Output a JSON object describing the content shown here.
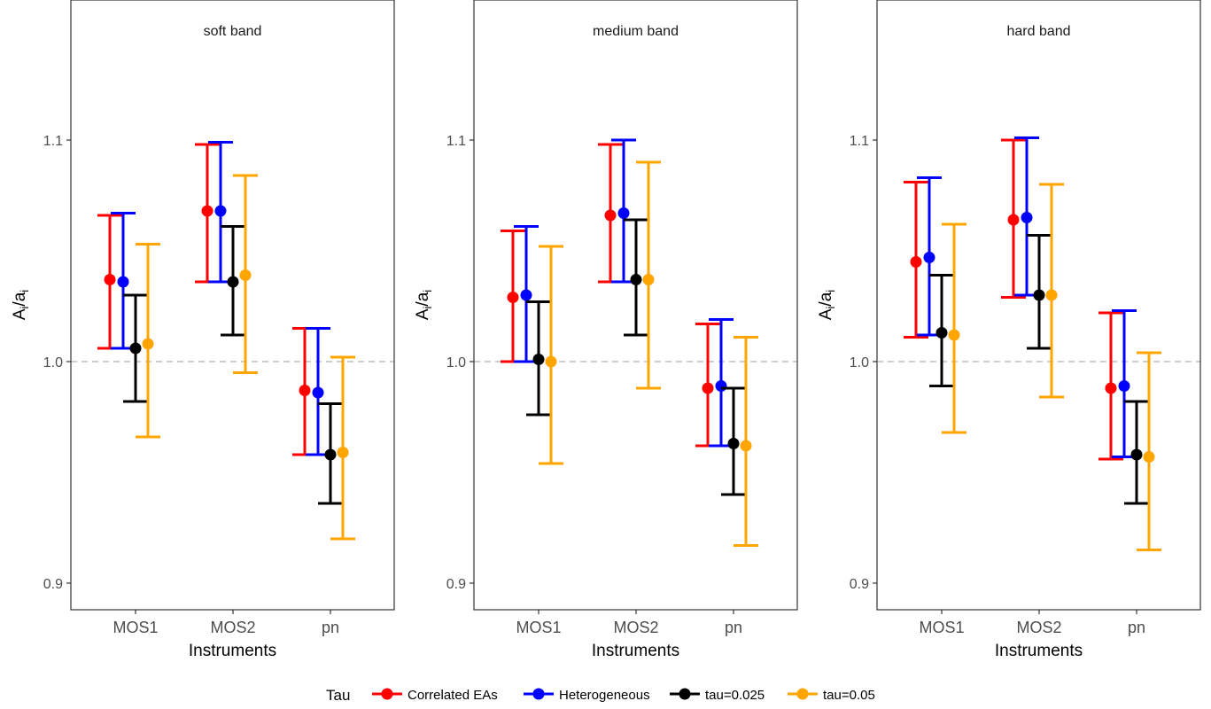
{
  "chart_data": {
    "type": "errorbar",
    "ylabel_base": "A",
    "ylabel_sub1": "i",
    "ylabel_mid": "/a",
    "ylabel_sub2": "i",
    "xlabel": "Instruments",
    "categories": [
      "MOS1",
      "MOS2",
      "pn"
    ],
    "y_ticks": [
      "0.9",
      "1.0",
      "1.1"
    ],
    "ylim": [
      0.8875,
      1.1625
    ],
    "reference_line": 1.0,
    "legend_title": "Tau",
    "legend_placement": "bottom",
    "series": [
      {
        "name": "Correlated EAs",
        "color": "#ff0000"
      },
      {
        "name": "Heterogeneous",
        "color": "#0000ff"
      },
      {
        "name": "tau=0.025",
        "color": "#000000"
      },
      {
        "name": "tau=0.05",
        "color": "#ffa500"
      }
    ],
    "panels": [
      {
        "title": "soft band",
        "data": [
          {
            "series": "Correlated EAs",
            "points": [
              {
                "category": "MOS1",
                "y": 1.037,
                "lo": 1.006,
                "hi": 1.066
              },
              {
                "category": "MOS2",
                "y": 1.068,
                "lo": 1.036,
                "hi": 1.098
              },
              {
                "category": "pn",
                "y": 0.987,
                "lo": 0.958,
                "hi": 1.015
              }
            ]
          },
          {
            "series": "Heterogeneous",
            "points": [
              {
                "category": "MOS1",
                "y": 1.036,
                "lo": 1.006,
                "hi": 1.067
              },
              {
                "category": "MOS2",
                "y": 1.068,
                "lo": 1.036,
                "hi": 1.099
              },
              {
                "category": "pn",
                "y": 0.986,
                "lo": 0.958,
                "hi": 1.015
              }
            ]
          },
          {
            "series": "tau=0.025",
            "points": [
              {
                "category": "MOS1",
                "y": 1.006,
                "lo": 0.982,
                "hi": 1.03
              },
              {
                "category": "MOS2",
                "y": 1.036,
                "lo": 1.012,
                "hi": 1.061
              },
              {
                "category": "pn",
                "y": 0.958,
                "lo": 0.936,
                "hi": 0.981
              }
            ]
          },
          {
            "series": "tau=0.05",
            "points": [
              {
                "category": "MOS1",
                "y": 1.008,
                "lo": 0.966,
                "hi": 1.053
              },
              {
                "category": "MOS2",
                "y": 1.039,
                "lo": 0.995,
                "hi": 1.084
              },
              {
                "category": "pn",
                "y": 0.959,
                "lo": 0.92,
                "hi": 1.002
              }
            ]
          }
        ]
      },
      {
        "title": "medium band",
        "data": [
          {
            "series": "Correlated EAs",
            "points": [
              {
                "category": "MOS1",
                "y": 1.029,
                "lo": 1.0,
                "hi": 1.059
              },
              {
                "category": "MOS2",
                "y": 1.066,
                "lo": 1.036,
                "hi": 1.098
              },
              {
                "category": "pn",
                "y": 0.988,
                "lo": 0.962,
                "hi": 1.017
              }
            ]
          },
          {
            "series": "Heterogeneous",
            "points": [
              {
                "category": "MOS1",
                "y": 1.03,
                "lo": 1.0,
                "hi": 1.061
              },
              {
                "category": "MOS2",
                "y": 1.067,
                "lo": 1.036,
                "hi": 1.1
              },
              {
                "category": "pn",
                "y": 0.989,
                "lo": 0.962,
                "hi": 1.019
              }
            ]
          },
          {
            "series": "tau=0.025",
            "points": [
              {
                "category": "MOS1",
                "y": 1.001,
                "lo": 0.976,
                "hi": 1.027
              },
              {
                "category": "MOS2",
                "y": 1.037,
                "lo": 1.012,
                "hi": 1.064
              },
              {
                "category": "pn",
                "y": 0.963,
                "lo": 0.94,
                "hi": 0.988
              }
            ]
          },
          {
            "series": "tau=0.05",
            "points": [
              {
                "category": "MOS1",
                "y": 1.0,
                "lo": 0.954,
                "hi": 1.052
              },
              {
                "category": "MOS2",
                "y": 1.037,
                "lo": 0.988,
                "hi": 1.09
              },
              {
                "category": "pn",
                "y": 0.962,
                "lo": 0.917,
                "hi": 1.011
              }
            ]
          }
        ]
      },
      {
        "title": "hard band",
        "data": [
          {
            "series": "Correlated EAs",
            "points": [
              {
                "category": "MOS1",
                "y": 1.045,
                "lo": 1.011,
                "hi": 1.081
              },
              {
                "category": "MOS2",
                "y": 1.064,
                "lo": 1.029,
                "hi": 1.1
              },
              {
                "category": "pn",
                "y": 0.988,
                "lo": 0.956,
                "hi": 1.022
              }
            ]
          },
          {
            "series": "Heterogeneous",
            "points": [
              {
                "category": "MOS1",
                "y": 1.047,
                "lo": 1.012,
                "hi": 1.083
              },
              {
                "category": "MOS2",
                "y": 1.065,
                "lo": 1.03,
                "hi": 1.101
              },
              {
                "category": "pn",
                "y": 0.989,
                "lo": 0.957,
                "hi": 1.023
              }
            ]
          },
          {
            "series": "tau=0.025",
            "points": [
              {
                "category": "MOS1",
                "y": 1.013,
                "lo": 0.989,
                "hi": 1.039
              },
              {
                "category": "MOS2",
                "y": 1.03,
                "lo": 1.006,
                "hi": 1.057
              },
              {
                "category": "pn",
                "y": 0.958,
                "lo": 0.936,
                "hi": 0.982
              }
            ]
          },
          {
            "series": "tau=0.05",
            "points": [
              {
                "category": "MOS1",
                "y": 1.012,
                "lo": 0.968,
                "hi": 1.062
              },
              {
                "category": "MOS2",
                "y": 1.03,
                "lo": 0.984,
                "hi": 1.08
              },
              {
                "category": "pn",
                "y": 0.957,
                "lo": 0.915,
                "hi": 1.004
              }
            ]
          }
        ]
      }
    ]
  }
}
